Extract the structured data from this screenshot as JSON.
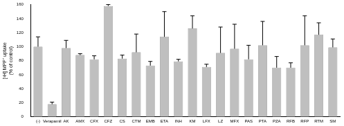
{
  "chart_data": {
    "type": "bar",
    "y_label": [
      "[³H] MPP⁺ uptake",
      "(% of control)"
    ],
    "categories": [
      "(-)",
      "Verapamil",
      "AK",
      "AMX",
      "CFX",
      "CFZ",
      "CS",
      "CTM",
      "EMB",
      "ETA",
      "INH",
      "KM",
      "LFX",
      "LZ",
      "MFX",
      "PAS",
      "PTA",
      "PZA",
      "RFB",
      "RFP",
      "RTM",
      "SM"
    ],
    "values": [
      100,
      18,
      98,
      88,
      82,
      158,
      83,
      92,
      73,
      114,
      79,
      126,
      71,
      91,
      97,
      82,
      102,
      70,
      70,
      102,
      117,
      99
    ],
    "errors": [
      14,
      3,
      11,
      2,
      5,
      2,
      5,
      26,
      6,
      36,
      3,
      18,
      4,
      37,
      35,
      20,
      34,
      16,
      7,
      42,
      17,
      12
    ],
    "color": "#bfbfbf",
    "ylim": [
      0,
      160
    ],
    "yticks": [
      0,
      20,
      40,
      60,
      80,
      100,
      120,
      140,
      160
    ],
    "grid": false,
    "legend": false
  }
}
